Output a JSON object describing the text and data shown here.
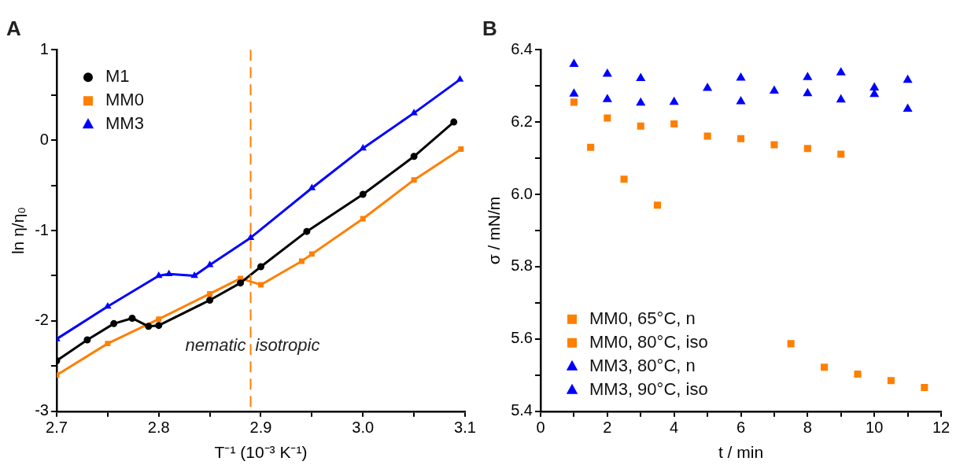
{
  "chart_data": [
    {
      "type": "line",
      "title": "A",
      "xlabel": "T⁻¹ (10⁻³ K⁻¹)",
      "ylabel": "ln η/η₀",
      "xlim": [
        2.7,
        3.1
      ],
      "ylim": [
        -3,
        1
      ],
      "xticks": [
        2.7,
        {
          "value": 2.75,
          "label": null
        },
        2.8,
        {
          "value": 2.85,
          "label": null
        },
        2.9,
        {
          "value": 2.95,
          "label": null
        },
        {
          "value": 3.0,
          "label": "3.0"
        },
        {
          "value": 3.05,
          "label": null
        },
        3.1
      ],
      "yticks": [
        -3,
        {
          "value": -2.5,
          "label": null
        },
        -2,
        {
          "value": -1.5,
          "label": null
        },
        -1,
        {
          "value": -0.5,
          "label": null
        },
        0,
        {
          "value": 0.5,
          "label": null
        },
        1
      ],
      "legend": "top left",
      "grid": false,
      "series": [
        {
          "name": "M1",
          "color": "#000000",
          "marker": "circle",
          "x": [
            2.7,
            2.73,
            2.756,
            2.774,
            2.79,
            2.8,
            2.85,
            2.88,
            2.9,
            2.945,
            3.0,
            3.05,
            3.089
          ],
          "values": [
            -2.44,
            -2.21,
            -2.03,
            -1.97,
            -2.06,
            -2.05,
            -1.77,
            -1.58,
            -1.4,
            -1.01,
            -0.6,
            -0.18,
            0.2
          ]
        },
        {
          "name": "MM0",
          "color": "#ff7f00",
          "marker": "square",
          "x": [
            2.7,
            2.75,
            2.8,
            2.85,
            2.88,
            2.9,
            2.94,
            2.95,
            3.0,
            3.05,
            3.096
          ],
          "values": [
            -2.6,
            -2.25,
            -1.98,
            -1.7,
            -1.53,
            -1.6,
            -1.34,
            -1.26,
            -0.87,
            -0.44,
            -0.1
          ]
        },
        {
          "name": "MM3",
          "color": "#0000ff",
          "marker": "triangle",
          "x": [
            2.7,
            2.75,
            2.8,
            2.81,
            2.835,
            2.85,
            2.89,
            2.95,
            3.0,
            3.05,
            3.095
          ],
          "values": [
            -2.2,
            -1.84,
            -1.5,
            -1.48,
            -1.5,
            -1.38,
            -1.08,
            -0.53,
            -0.09,
            0.3,
            0.67
          ]
        }
      ],
      "ref_lines": [
        {
          "axis": "x",
          "value": 2.89,
          "color": "#ff7f00",
          "line_style": "dashed"
        }
      ],
      "annotations": [
        "nematic",
        "isotropic"
      ]
    },
    {
      "type": "scatter",
      "title": "B",
      "xlabel": "t / min",
      "ylabel": "σ / mN/m",
      "xlim": [
        0,
        12
      ],
      "ylim": [
        5.4,
        6.4
      ],
      "xticks": [
        0,
        {
          "value": 1,
          "label": null
        },
        2,
        {
          "value": 3,
          "label": null
        },
        4,
        {
          "value": 5,
          "label": null
        },
        6,
        {
          "value": 7,
          "label": null
        },
        8,
        {
          "value": 9,
          "label": null
        },
        10,
        {
          "value": 11,
          "label": null
        },
        12
      ],
      "yticks": [
        5.4,
        {
          "value": 5.5,
          "label": null
        },
        5.6,
        {
          "value": 5.7,
          "label": null
        },
        5.8,
        {
          "value": 5.9,
          "label": null
        },
        {
          "value": 6.0,
          "label": "6.0"
        },
        {
          "value": 6.1,
          "label": null
        },
        6.2,
        {
          "value": 6.3,
          "label": null
        },
        6.4
      ],
      "legend": "bottom left",
      "grid": false,
      "series": [
        {
          "name": "MM0, 65°C, n",
          "color": "#ff7f00",
          "marker": "square",
          "x": [
            1,
            2,
            3,
            4,
            5,
            6,
            7,
            8,
            9
          ],
          "values": [
            6.255,
            6.211,
            6.189,
            6.195,
            6.161,
            6.154,
            6.137,
            6.127,
            6.111
          ]
        },
        {
          "name": "MM0, 80°C, iso",
          "color": "#ff7f00",
          "marker": "square",
          "x": [
            1.5,
            2.5,
            3.5,
            7.5,
            8.5,
            9.5,
            10.5,
            11.5
          ],
          "values": [
            6.13,
            6.042,
            5.97,
            5.587,
            5.522,
            5.503,
            5.485,
            5.466
          ]
        },
        {
          "name": "MM3, 80°C, n",
          "color": "#0000ff",
          "marker": "triangle",
          "x": [
            1,
            2,
            3,
            6,
            8,
            9,
            10,
            11
          ],
          "values": [
            6.36,
            6.333,
            6.321,
            6.322,
            6.324,
            6.337,
            6.295,
            6.316
          ]
        },
        {
          "name": "MM3, 90°C, iso",
          "color": "#0000ff",
          "marker": "triangle",
          "x": [
            1,
            2,
            3,
            4,
            5,
            6,
            7,
            8,
            9,
            10,
            11
          ],
          "values": [
            6.278,
            6.263,
            6.253,
            6.255,
            6.294,
            6.257,
            6.286,
            6.279,
            6.262,
            6.277,
            6.236
          ]
        }
      ]
    }
  ]
}
